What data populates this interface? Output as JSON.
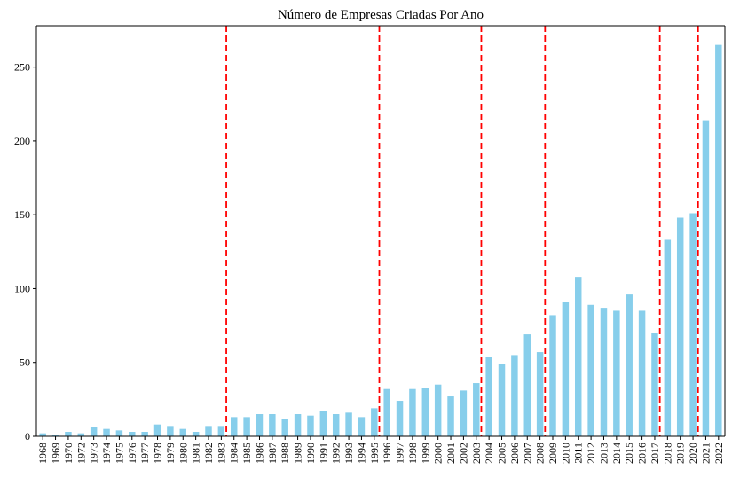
{
  "chart_data": {
    "type": "bar",
    "title": "Número de Empresas Criadas Por Ano",
    "xlabel": "",
    "ylabel": "",
    "ylim": [
      0,
      278
    ],
    "yticks": [
      0,
      50,
      100,
      150,
      200,
      250
    ],
    "bar_color": "#87ceeb",
    "vline_color": "#ff0000",
    "grid": false,
    "categories": [
      "1968",
      "1969",
      "1970",
      "1972",
      "1973",
      "1974",
      "1975",
      "1976",
      "1977",
      "1978",
      "1979",
      "1980",
      "1981",
      "1982",
      "1983",
      "1984",
      "1985",
      "1986",
      "1987",
      "1988",
      "1989",
      "1990",
      "1991",
      "1992",
      "1993",
      "1994",
      "1995",
      "1996",
      "1997",
      "1998",
      "1999",
      "2000",
      "2001",
      "2002",
      "2003",
      "2004",
      "2005",
      "2006",
      "2007",
      "2008",
      "2009",
      "2010",
      "2011",
      "2012",
      "2013",
      "2014",
      "2015",
      "2016",
      "2017",
      "2018",
      "2019",
      "2020",
      "2021",
      "2022"
    ],
    "values": [
      2,
      1,
      3,
      2,
      6,
      5,
      4,
      3,
      3,
      8,
      7,
      5,
      3,
      7,
      7,
      13,
      13,
      15,
      15,
      12,
      15,
      14,
      17,
      15,
      16,
      13,
      19,
      32,
      24,
      32,
      33,
      35,
      27,
      31,
      36,
      54,
      49,
      55,
      69,
      57,
      82,
      91,
      108,
      89,
      87,
      85,
      96,
      85,
      70,
      133,
      148,
      151,
      214,
      265
    ],
    "vertical_lines_between": [
      [
        "1983",
        "1984"
      ],
      [
        "1995",
        "1996"
      ],
      [
        "2003",
        "2004"
      ],
      [
        "2008",
        "2009"
      ],
      [
        "2017",
        "2018"
      ],
      [
        "2020",
        "2021"
      ]
    ]
  }
}
